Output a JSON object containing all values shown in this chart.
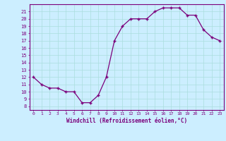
{
  "x": [
    0,
    1,
    2,
    3,
    4,
    5,
    6,
    7,
    8,
    9,
    10,
    11,
    12,
    13,
    14,
    15,
    16,
    17,
    18,
    19,
    20,
    21,
    22,
    23
  ],
  "y": [
    12,
    11,
    10.5,
    10.5,
    10,
    10,
    8.5,
    8.5,
    9.5,
    12,
    17,
    19,
    20,
    20,
    20,
    21,
    21.5,
    21.5,
    21.5,
    20.5,
    20.5,
    18.5,
    17.5,
    17
  ],
  "line_color": "#7b007b",
  "marker_color": "#7b007b",
  "bg_color": "#cceeff",
  "grid_color": "#aadddd",
  "axis_color": "#7b007b",
  "tick_color": "#7b007b",
  "xlabel": "Windchill (Refroidissement éolien,°C)",
  "yticks": [
    8,
    9,
    10,
    11,
    12,
    13,
    14,
    15,
    16,
    17,
    18,
    19,
    20,
    21
  ],
  "ylim": [
    7.5,
    22
  ],
  "xlim": [
    -0.5,
    23.5
  ]
}
